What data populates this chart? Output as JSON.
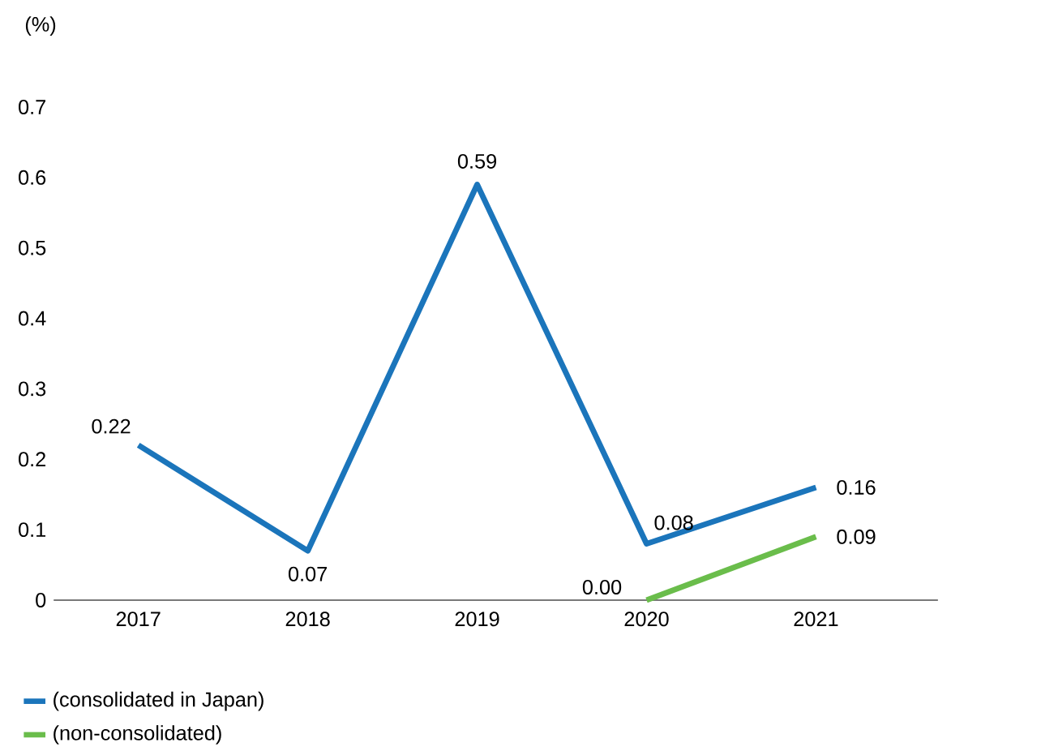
{
  "chart_data": {
    "type": "line",
    "ylabel": "(%)",
    "categories": [
      "2017",
      "2018",
      "2019",
      "2020",
      "2021"
    ],
    "ylim": [
      0,
      0.7
    ],
    "yticks": [
      0,
      0.1,
      0.2,
      0.3,
      0.4,
      0.5,
      0.6,
      0.7
    ],
    "series": [
      {
        "name": "(consolidated in Japan)",
        "color": "#1b75bb",
        "values": [
          0.22,
          0.07,
          0.59,
          0.08,
          0.16
        ],
        "value_labels": [
          "0.22",
          "0.07",
          "0.59",
          "0.08",
          "0.16"
        ]
      },
      {
        "name": "(non-consolidated)",
        "color": "#6abd4b",
        "values": [
          null,
          null,
          null,
          0.0,
          0.09
        ],
        "value_labels": [
          null,
          null,
          null,
          "0.00",
          "0.09"
        ]
      }
    ],
    "legend": "bottom",
    "marker": "none",
    "line_style": "solid"
  }
}
